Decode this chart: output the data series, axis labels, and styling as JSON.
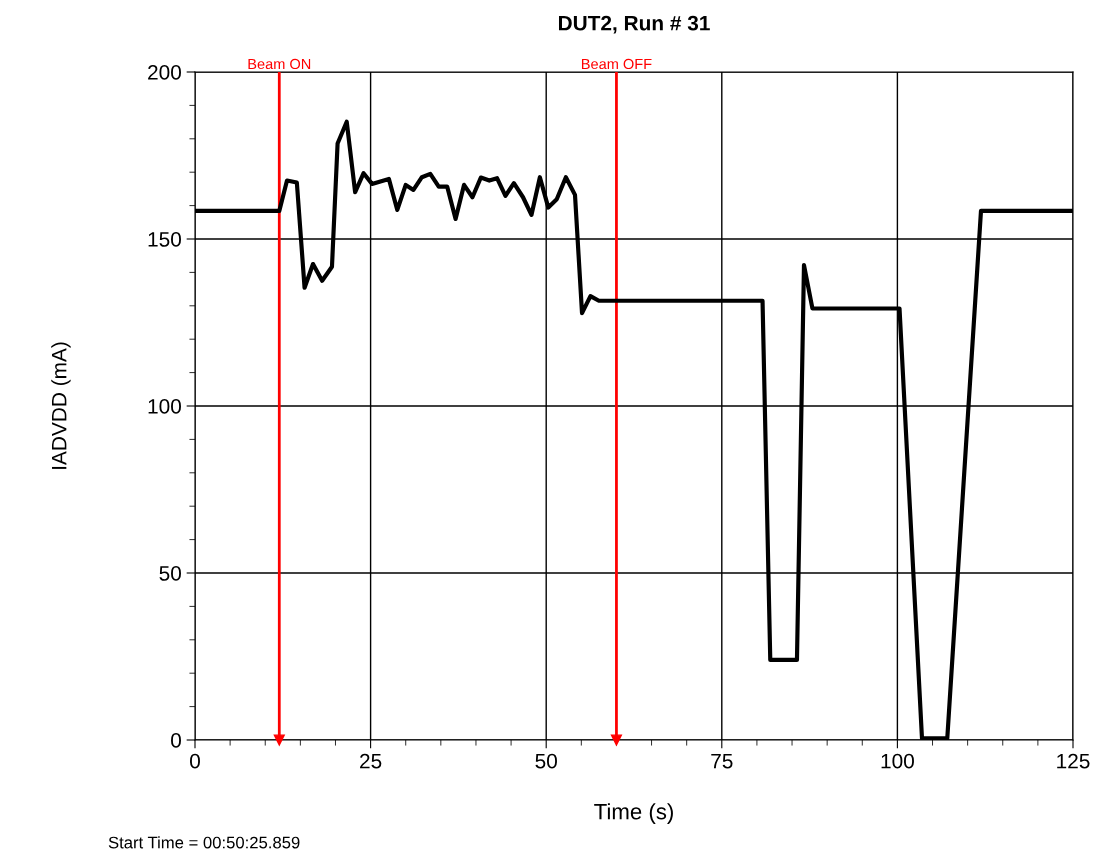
{
  "chart_data": {
    "type": "line",
    "title": "DUT2, Run # 31",
    "xlabel": "Time (s)",
    "ylabel": "IADVDD (mA)",
    "annotations": [
      "Start Time = 00:50:25.859"
    ],
    "series": [
      {
        "color": "#000000",
        "x": [
          0,
          12.0,
          13.1,
          14.5,
          15.6,
          16.8,
          18.1,
          19.5,
          20.3,
          21.6,
          22.8,
          24.0,
          25.2,
          27.6,
          28.8,
          30.0,
          31.1,
          32.3,
          33.5,
          34.7,
          35.9,
          37.1,
          38.3,
          39.5,
          40.7,
          41.9,
          43.0,
          44.2,
          45.4,
          46.7,
          47.9,
          49.1,
          50.3,
          51.5,
          52.8,
          54.1,
          55.1,
          56.3,
          57.5,
          80.8,
          81.9,
          85.7,
          86.7,
          87.9,
          100.3,
          103.5,
          107.1,
          111.9,
          125
        ],
        "values": [
          158.4,
          158.4,
          167.5,
          166.9,
          135.4,
          142.5,
          137.5,
          141.7,
          178.6,
          185.1,
          164.0,
          169.7,
          166.5,
          168.0,
          158.7,
          166.2,
          164.7,
          168.5,
          169.5,
          165.7,
          165.7,
          156.0,
          166.2,
          162.5,
          168.4,
          167.5,
          168.2,
          162.9,
          166.7,
          162.5,
          157.2,
          168.5,
          159.4,
          161.9,
          168.5,
          163.2,
          127.8,
          132.9,
          131.5,
          131.5,
          24.0,
          24.0,
          142.2,
          129.2,
          129.2,
          0.5,
          0.5,
          158.4,
          158.4
        ]
      }
    ],
    "xlim": [
      0,
      125
    ],
    "xticks": [
      0,
      25,
      50,
      75,
      100,
      125
    ],
    "ylim": [
      0,
      200
    ],
    "yticks": [
      0,
      50,
      100,
      150,
      200
    ],
    "grid": true,
    "marker": "none",
    "line_style": "solid",
    "ref_lines": [
      {
        "axis": "x",
        "value": 12,
        "label": "Beam ON",
        "color": "#ff0000"
      },
      {
        "axis": "x",
        "value": 60,
        "label": "Beam OFF",
        "color": "#ff0000"
      }
    ]
  }
}
